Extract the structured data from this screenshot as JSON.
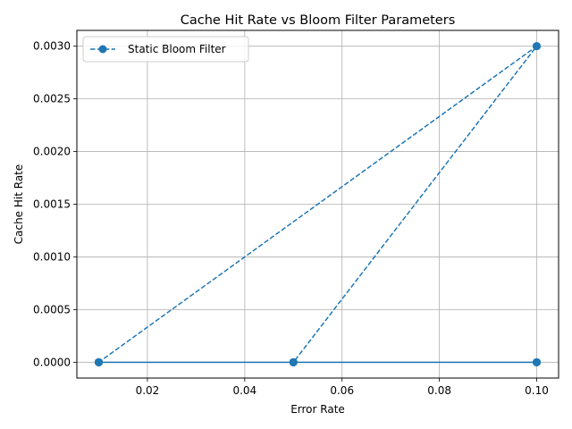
{
  "chart_data": {
    "type": "line",
    "title": "Cache Hit Rate vs Bloom Filter Parameters",
    "xlabel": "Error Rate",
    "ylabel": "Cache Hit Rate",
    "xlim": [
      0.0055,
      0.1045
    ],
    "ylim": [
      -0.00015,
      0.00315
    ],
    "xticks": [
      0.02,
      0.04,
      0.06,
      0.08,
      0.1
    ],
    "xtick_labels": [
      "0.02",
      "0.04",
      "0.06",
      "0.08",
      "0.10"
    ],
    "yticks": [
      0.0,
      0.0005,
      0.001,
      0.0015,
      0.002,
      0.0025,
      0.003
    ],
    "ytick_labels": [
      "0.0000",
      "0.0005",
      "0.0010",
      "0.0015",
      "0.0020",
      "0.0025",
      "0.0030"
    ],
    "grid": true,
    "legend_position": "top-left",
    "series": [
      {
        "name": "Static Bloom Filter",
        "color": "#1f77b4",
        "linestyle": "dashed",
        "marker": "circle",
        "x": [
          0.01,
          0.01,
          0.01,
          0.05,
          0.05,
          0.05,
          0.1,
          0.1,
          0.1,
          0.01,
          0.01,
          0.05,
          0.05,
          0.1,
          0.1,
          0.01
        ],
        "y": [
          0.0,
          0.0,
          0.0,
          0.0,
          0.0,
          0.0,
          0.0,
          0.0,
          0.0,
          0.0,
          0.0,
          0.0,
          0.0,
          0.003,
          0.003,
          0.0
        ]
      }
    ]
  }
}
